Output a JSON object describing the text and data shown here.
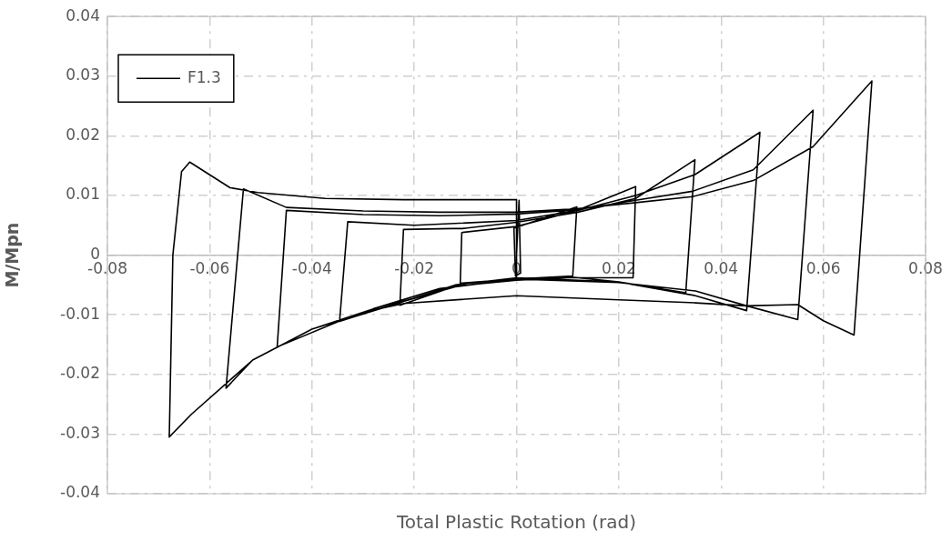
{
  "chart_data": {
    "type": "line",
    "xlabel": "Total Plastic Rotation (rad)",
    "ylabel": "M/Mpn",
    "series": [
      {
        "name": "F1.3",
        "color": "#000000",
        "x": [
          0,
          0.0005,
          0.0008,
          -0.0002,
          -0.0005,
          0.0118,
          0.011,
          0,
          -0.011,
          -0.0107,
          0,
          0.0118,
          0.0233,
          0.0228,
          0.01,
          0,
          -0.012,
          -0.0228,
          -0.0221,
          -0.01,
          0,
          0.012,
          0.0233,
          0.0349,
          0.0331,
          0.02,
          0.01,
          0,
          -0.012,
          -0.024,
          -0.0346,
          -0.033,
          -0.02,
          0,
          0.012,
          0.0233,
          0.0349,
          0.0476,
          0.045,
          0.035,
          0.02,
          0,
          -0.012,
          -0.024,
          -0.035,
          -0.0468,
          -0.045,
          -0.03,
          -0.015,
          0,
          0.0118,
          0.0233,
          0.0344,
          0.0463,
          0.058,
          0.055,
          0.045,
          0.035,
          0.02,
          0,
          -0.015,
          -0.028,
          -0.04,
          -0.0516,
          -0.0568,
          -0.0534,
          -0.045,
          -0.03,
          -0.015,
          0,
          0.0118,
          0.0233,
          0.0344,
          0.0463,
          0.058,
          0.0695,
          0.066,
          0.06,
          0.055,
          0.045,
          0.035,
          0.02,
          0,
          -0.022,
          -0.028,
          -0.04,
          -0.0516,
          -0.0636,
          -0.0679,
          -0.0672,
          -0.0655,
          -0.0639,
          -0.056,
          -0.0506,
          -0.0374,
          -0.022,
          0,
          0
        ],
        "values": [
          0,
          0.0092,
          -0.003,
          -0.0035,
          0.0045,
          0.0081,
          -0.0035,
          -0.004,
          -0.0047,
          0.0038,
          0.0048,
          0.0075,
          0.0115,
          -0.0038,
          -0.0038,
          -0.0042,
          -0.0052,
          -0.0084,
          0.0043,
          0.0045,
          0.0055,
          0.0072,
          0.0095,
          0.016,
          -0.0063,
          -0.0045,
          -0.0036,
          -0.004,
          -0.0053,
          -0.0082,
          -0.0111,
          0.0056,
          0.005,
          0.0058,
          0.0075,
          0.01,
          0.0135,
          0.0206,
          -0.0093,
          -0.0068,
          -0.0045,
          -0.0038,
          -0.005,
          -0.0083,
          -0.0112,
          -0.0154,
          0.0075,
          0.0068,
          0.0066,
          0.0069,
          0.0076,
          0.0092,
          0.0107,
          0.0143,
          0.0243,
          -0.0108,
          -0.0085,
          -0.006,
          -0.0046,
          -0.004,
          -0.0056,
          -0.009,
          -0.0124,
          -0.0176,
          -0.0223,
          0.0111,
          0.008,
          0.0074,
          0.0072,
          0.0072,
          0.0078,
          0.0088,
          0.0098,
          0.0125,
          0.0182,
          0.0292,
          -0.0134,
          -0.011,
          -0.0083,
          -0.0085,
          -0.008,
          -0.0075,
          -0.0068,
          -0.0081,
          -0.0092,
          -0.0124,
          -0.0176,
          -0.0267,
          -0.0305,
          0,
          0.014,
          0.0156,
          0.0113,
          0.0105,
          0.0095,
          0.0093,
          0.0093,
          -0.004
        ]
      }
    ],
    "xlim": [
      -0.08,
      0.08
    ],
    "xticks": [
      -0.08,
      -0.06,
      -0.04,
      -0.02,
      0,
      0.02,
      0.04,
      0.06,
      0.08
    ],
    "ylim": [
      -0.04,
      0.04
    ],
    "yticks": [
      -0.04,
      -0.03,
      -0.02,
      -0.01,
      0,
      0.01,
      0.02,
      0.03,
      0.04
    ],
    "grid": true,
    "legend": "top left",
    "marker": "none",
    "line_style": "solid"
  }
}
